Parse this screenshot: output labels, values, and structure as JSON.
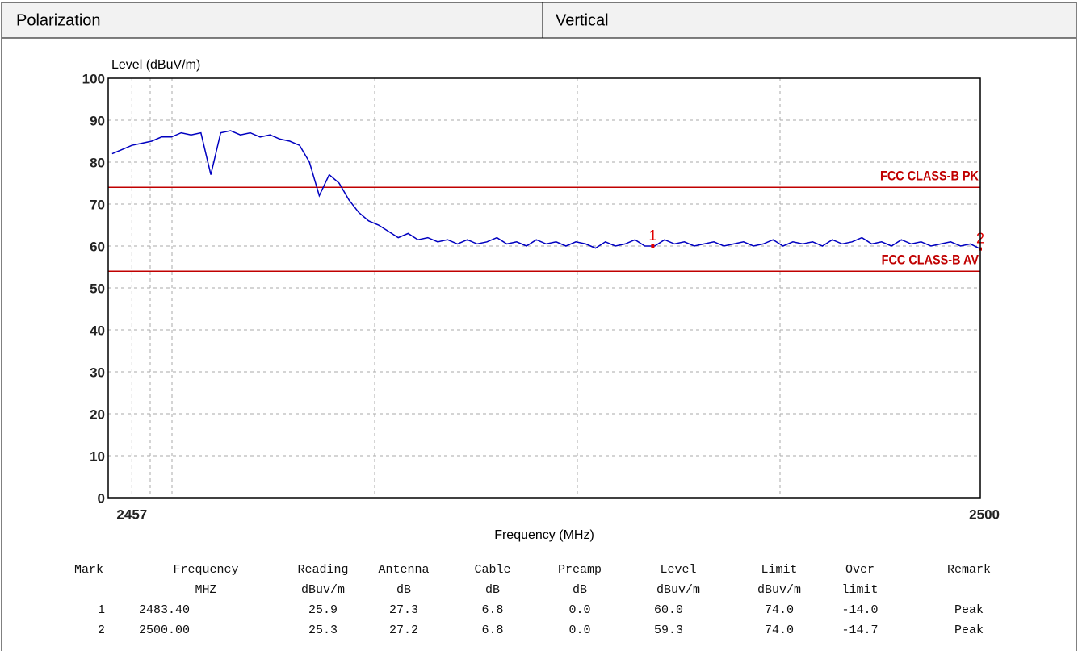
{
  "header": {
    "label": "Polarization",
    "value": "Vertical"
  },
  "chart_data": {
    "type": "line",
    "ylabel": "Level (dBuV/m)",
    "xlabel": "Frequency (MHz)",
    "xlim": [
      2455.8,
      2500
    ],
    "xticks": [
      2457,
      2500
    ],
    "ylim": [
      0,
      100
    ],
    "yticks": [
      0,
      10,
      20,
      30,
      40,
      50,
      60,
      70,
      80,
      90,
      100
    ],
    "grid": true,
    "x": [
      2456,
      2456.5,
      2457,
      2457.5,
      2458,
      2458.5,
      2459,
      2459.5,
      2460,
      2460.5,
      2461,
      2461.5,
      2462,
      2462.5,
      2463,
      2463.5,
      2464,
      2464.5,
      2465,
      2465.5,
      2466,
      2466.5,
      2467,
      2467.5,
      2468,
      2468.5,
      2469,
      2469.5,
      2470,
      2470.5,
      2471,
      2471.5,
      2472,
      2472.5,
      2473,
      2473.5,
      2474,
      2474.5,
      2475,
      2475.5,
      2476,
      2476.5,
      2477,
      2477.5,
      2478,
      2478.5,
      2479,
      2479.5,
      2480,
      2480.5,
      2481,
      2481.5,
      2482,
      2482.5,
      2483,
      2483.5,
      2484,
      2484.5,
      2485,
      2485.5,
      2486,
      2486.5,
      2487,
      2487.5,
      2488,
      2488.5,
      2489,
      2489.5,
      2490,
      2490.5,
      2491,
      2491.5,
      2492,
      2492.5,
      2493,
      2493.5,
      2494,
      2494.5,
      2495,
      2495.5,
      2496,
      2496.5,
      2497,
      2497.5,
      2498,
      2498.5,
      2499,
      2499.5,
      2500
    ],
    "series": [
      {
        "name": "Level",
        "color": "#0000c0",
        "values": [
          82,
          83,
          84,
          84.5,
          85,
          86,
          86,
          87,
          86.5,
          87,
          77,
          87,
          87.5,
          86.5,
          87,
          86,
          86.5,
          85.5,
          85,
          84,
          80,
          72,
          77,
          75,
          71,
          68,
          66,
          65,
          63.5,
          62,
          63,
          61.5,
          62,
          61,
          61.5,
          60.5,
          61.5,
          60.5,
          61,
          62,
          60.5,
          61,
          60,
          61.5,
          60.5,
          61,
          60,
          61,
          60.5,
          59.5,
          61,
          60,
          60.5,
          61.5,
          60,
          60,
          61.5,
          60.5,
          61,
          60,
          60.5,
          61,
          60,
          60.5,
          61,
          60,
          60.5,
          61.5,
          60,
          61,
          60.5,
          61,
          60,
          61.5,
          60.5,
          61,
          62,
          60.5,
          61,
          60,
          61.5,
          60.5,
          61,
          60,
          60.5,
          61,
          60,
          60.5,
          59.3
        ]
      }
    ],
    "limits": [
      {
        "name": "FCC CLASS-B PK",
        "value": 74,
        "color": "#c00000"
      },
      {
        "name": "FCC CLASS-B AV",
        "value": 54,
        "color": "#c00000"
      }
    ],
    "markers": [
      {
        "label": "1",
        "x": 2483.4,
        "y": 60.0
      },
      {
        "label": "2",
        "x": 2500,
        "y": 59.3
      }
    ]
  },
  "table": {
    "columns": [
      [
        "Mark"
      ],
      [
        "Frequency",
        "MHZ"
      ],
      [
        "Reading",
        "dBuv/m"
      ],
      [
        "Antenna",
        "dB"
      ],
      [
        "Cable",
        "dB"
      ],
      [
        "Preamp",
        "dB"
      ],
      [
        "Level",
        "dBuv/m"
      ],
      [
        "Limit",
        "dBuv/m"
      ],
      [
        "Over",
        "limit"
      ],
      [
        "Remark"
      ]
    ],
    "rows": [
      [
        "1",
        "2483.40",
        "25.9",
        "27.3",
        "6.8",
        "0.0",
        "60.0",
        "74.0",
        "-14.0",
        "Peak"
      ],
      [
        "2",
        "2500.00",
        "25.3",
        "27.2",
        "6.8",
        "0.0",
        "59.3",
        "74.0",
        "-14.7",
        "Peak"
      ]
    ]
  }
}
